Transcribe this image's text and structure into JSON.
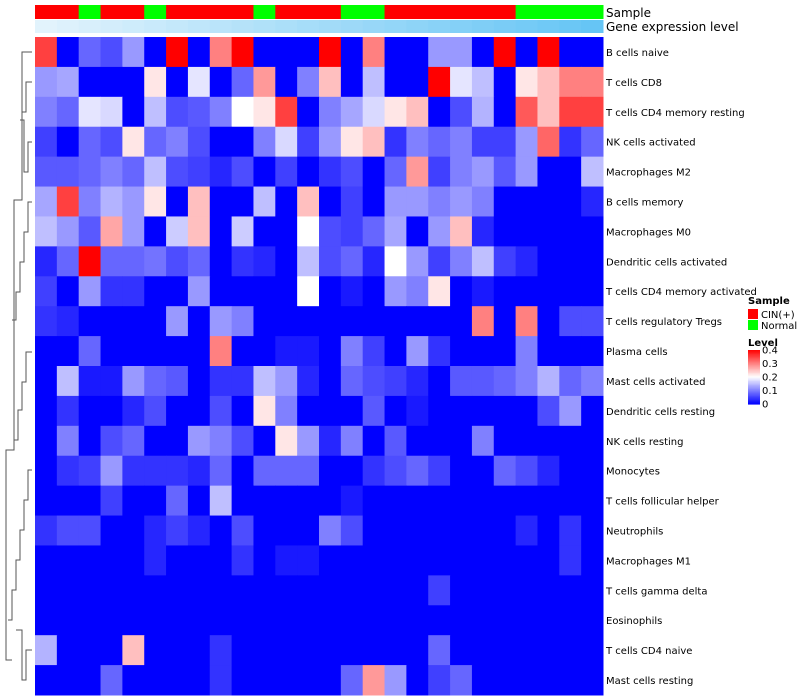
{
  "chart_data": {
    "type": "heatmap",
    "annotation_labels": {
      "sample": "Sample",
      "level": "Gene expression level"
    },
    "legend": {
      "sample_title": "Sample",
      "sample_entries": [
        {
          "label": "CIN(+)",
          "color": "#ff0000"
        },
        {
          "label": "Normal",
          "color": "#00ff00"
        }
      ],
      "level_title": "Level",
      "level_ticks": [
        "0.4",
        "0.3",
        "0.2",
        "0.1",
        "0"
      ],
      "level_tick_values": [
        0.4,
        0.3,
        0.2,
        0.1,
        0
      ]
    },
    "color_scale": {
      "low": "#0000ff",
      "mid": "#ffffff",
      "high": "#ff0000",
      "min": 0,
      "max": 0.4
    },
    "sample_groups": [
      "CIN(+)",
      "CIN(+)",
      "Normal",
      "CIN(+)",
      "CIN(+)",
      "Normal",
      "CIN(+)",
      "CIN(+)",
      "CIN(+)",
      "CIN(+)",
      "Normal",
      "CIN(+)",
      "CIN(+)",
      "CIN(+)",
      "Normal",
      "Normal",
      "CIN(+)",
      "CIN(+)",
      "CIN(+)",
      "CIN(+)",
      "CIN(+)",
      "CIN(+)",
      "Normal",
      "Normal",
      "Normal",
      "Normal"
    ],
    "expression_levels": [
      0.1,
      0.11,
      0.12,
      0.13,
      0.14,
      0.15,
      0.16,
      0.17,
      0.18,
      0.19,
      0.2,
      0.21,
      0.22,
      0.23,
      0.24,
      0.25,
      0.26,
      0.27,
      0.28,
      0.29,
      0.3,
      0.31,
      0.32,
      0.33,
      0.34,
      0.35
    ],
    "rows": [
      "B cells naive",
      "T cells CD8",
      "T cells CD4 memory resting",
      "NK cells activated",
      "Macrophages M2",
      "B cells memory",
      "Macrophages M0",
      "Dendritic cells activated",
      "T cells CD4 memory activated",
      "T cells regulatory  Tregs",
      "Plasma cells",
      "Mast cells activated",
      "Dendritic cells resting",
      "NK cells resting",
      "Monocytes",
      "T cells follicular helper",
      "Neutrophils",
      "Macrophages M1",
      "T cells gamma delta",
      "Eosinophils",
      "T cells CD4 naive",
      "Mast cells resting"
    ],
    "values": [
      [
        0.35,
        0.0,
        0.08,
        0.06,
        0.12,
        0.0,
        0.4,
        0.0,
        0.3,
        0.4,
        0.0,
        0.0,
        0.0,
        0.4,
        0.0,
        0.3,
        0.0,
        0.0,
        0.12,
        0.12,
        0.0,
        0.4,
        0.0,
        0.4,
        0.0,
        0.0
      ],
      [
        0.12,
        0.13,
        0.0,
        0.0,
        0.0,
        0.22,
        0.0,
        0.18,
        0.0,
        0.08,
        0.28,
        0.0,
        0.1,
        0.25,
        0.0,
        0.15,
        0.0,
        0.0,
        0.4,
        0.18,
        0.15,
        0.0,
        0.22,
        0.25,
        0.3,
        0.3
      ],
      [
        0.1,
        0.08,
        0.18,
        0.17,
        0.0,
        0.15,
        0.06,
        0.07,
        0.1,
        0.2,
        0.22,
        0.35,
        0.0,
        0.1,
        0.13,
        0.17,
        0.22,
        0.25,
        0.0,
        0.06,
        0.14,
        0.0,
        0.33,
        0.25,
        0.35,
        0.35
      ],
      [
        0.05,
        0.0,
        0.08,
        0.06,
        0.22,
        0.08,
        0.1,
        0.06,
        0.0,
        0.0,
        0.1,
        0.17,
        0.05,
        0.12,
        0.22,
        0.25,
        0.04,
        0.1,
        0.08,
        0.1,
        0.05,
        0.05,
        0.12,
        0.32,
        0.04,
        0.08
      ],
      [
        0.07,
        0.07,
        0.08,
        0.1,
        0.08,
        0.15,
        0.06,
        0.05,
        0.03,
        0.06,
        0.0,
        0.05,
        0.0,
        0.04,
        0.06,
        0.0,
        0.08,
        0.28,
        0.05,
        0.1,
        0.12,
        0.07,
        0.12,
        0.0,
        0.0,
        0.15
      ],
      [
        0.13,
        0.35,
        0.1,
        0.14,
        0.12,
        0.22,
        0.0,
        0.25,
        0.0,
        0.0,
        0.15,
        0.0,
        0.25,
        0.0,
        0.05,
        0.0,
        0.12,
        0.12,
        0.1,
        0.12,
        0.1,
        0.0,
        0.0,
        0.0,
        0.0,
        0.03
      ],
      [
        0.15,
        0.12,
        0.07,
        0.27,
        0.12,
        0.0,
        0.16,
        0.25,
        0.0,
        0.16,
        0.0,
        0.0,
        0.2,
        0.06,
        0.05,
        0.08,
        0.13,
        0.0,
        0.12,
        0.25,
        0.03,
        0.0,
        0.0,
        0.0,
        0.0,
        0.0
      ],
      [
        0.03,
        0.08,
        0.4,
        0.08,
        0.08,
        0.09,
        0.06,
        0.08,
        0.0,
        0.04,
        0.03,
        0.0,
        0.15,
        0.06,
        0.08,
        0.03,
        0.2,
        0.12,
        0.05,
        0.1,
        0.15,
        0.05,
        0.03,
        0.0,
        0.0,
        0.0
      ],
      [
        0.05,
        0.0,
        0.12,
        0.04,
        0.04,
        0.0,
        0.0,
        0.12,
        0.0,
        0.0,
        0.0,
        0.0,
        0.2,
        0.0,
        0.02,
        0.0,
        0.12,
        0.1,
        0.22,
        0.0,
        0.02,
        0.0,
        0.0,
        0.0,
        0.0,
        0.0
      ],
      [
        0.04,
        0.03,
        0.0,
        0.0,
        0.0,
        0.0,
        0.12,
        0.0,
        0.12,
        0.1,
        0.0,
        0.0,
        0.0,
        0.0,
        0.0,
        0.0,
        0.0,
        0.0,
        0.0,
        0.0,
        0.3,
        0.0,
        0.3,
        0.0,
        0.06,
        0.06
      ],
      [
        0.0,
        0.0,
        0.08,
        0.0,
        0.0,
        0.0,
        0.0,
        0.0,
        0.3,
        0.0,
        0.0,
        0.02,
        0.02,
        0.0,
        0.1,
        0.05,
        0.0,
        0.12,
        0.04,
        0.0,
        0.0,
        0.0,
        0.1,
        0.0,
        0.0,
        0.0
      ],
      [
        0.0,
        0.15,
        0.02,
        0.02,
        0.12,
        0.08,
        0.07,
        0.0,
        0.04,
        0.04,
        0.15,
        0.12,
        0.03,
        0.0,
        0.08,
        0.06,
        0.05,
        0.03,
        0.0,
        0.07,
        0.07,
        0.08,
        0.1,
        0.14,
        0.08,
        0.1
      ],
      [
        0.0,
        0.04,
        0.0,
        0.0,
        0.03,
        0.06,
        0.0,
        0.0,
        0.06,
        0.0,
        0.22,
        0.1,
        0.0,
        0.0,
        0.0,
        0.07,
        0.0,
        0.02,
        0.0,
        0.0,
        0.0,
        0.0,
        0.0,
        0.06,
        0.12,
        0.0
      ],
      [
        0.0,
        0.1,
        0.0,
        0.06,
        0.08,
        0.0,
        0.0,
        0.12,
        0.1,
        0.06,
        0.0,
        0.22,
        0.12,
        0.03,
        0.1,
        0.0,
        0.07,
        0.0,
        0.0,
        0.0,
        0.1,
        0.0,
        0.0,
        0.0,
        0.0,
        0.0
      ],
      [
        0.0,
        0.04,
        0.05,
        0.12,
        0.04,
        0.04,
        0.04,
        0.03,
        0.08,
        0.0,
        0.08,
        0.08,
        0.08,
        0.0,
        0.0,
        0.04,
        0.06,
        0.08,
        0.05,
        0.0,
        0.0,
        0.08,
        0.06,
        0.03,
        0.0,
        0.0
      ],
      [
        0.0,
        0.0,
        0.0,
        0.05,
        0.0,
        0.0,
        0.08,
        0.0,
        0.15,
        0.0,
        0.0,
        0.0,
        0.0,
        0.0,
        0.02,
        0.0,
        0.0,
        0.0,
        0.0,
        0.0,
        0.0,
        0.0,
        0.0,
        0.0,
        0.0,
        0.0
      ],
      [
        0.04,
        0.06,
        0.06,
        0.0,
        0.0,
        0.03,
        0.05,
        0.03,
        0.0,
        0.06,
        0.0,
        0.0,
        0.0,
        0.1,
        0.06,
        0.0,
        0.0,
        0.0,
        0.0,
        0.0,
        0.0,
        0.0,
        0.03,
        0.0,
        0.04,
        0.0
      ],
      [
        0.0,
        0.0,
        0.0,
        0.0,
        0.0,
        0.03,
        0.0,
        0.0,
        0.0,
        0.04,
        0.0,
        0.02,
        0.02,
        0.0,
        0.0,
        0.0,
        0.0,
        0.0,
        0.0,
        0.0,
        0.0,
        0.0,
        0.0,
        0.0,
        0.04,
        0.0
      ],
      [
        0.0,
        0.0,
        0.0,
        0.0,
        0.0,
        0.0,
        0.0,
        0.0,
        0.0,
        0.0,
        0.0,
        0.0,
        0.0,
        0.0,
        0.0,
        0.0,
        0.0,
        0.0,
        0.05,
        0.0,
        0.0,
        0.0,
        0.0,
        0.0,
        0.0,
        0.0
      ],
      [
        0.0,
        0.0,
        0.0,
        0.0,
        0.0,
        0.0,
        0.0,
        0.0,
        0.0,
        0.0,
        0.0,
        0.0,
        0.0,
        0.0,
        0.0,
        0.0,
        0.0,
        0.0,
        0.0,
        0.0,
        0.0,
        0.0,
        0.0,
        0.0,
        0.0,
        0.0
      ],
      [
        0.14,
        0.0,
        0.0,
        0.0,
        0.25,
        0.0,
        0.0,
        0.0,
        0.04,
        0.0,
        0.0,
        0.0,
        0.0,
        0.0,
        0.0,
        0.0,
        0.0,
        0.0,
        0.08,
        0.0,
        0.0,
        0.0,
        0.0,
        0.0,
        0.0,
        0.0
      ],
      [
        0.0,
        0.0,
        0.0,
        0.08,
        0.0,
        0.0,
        0.0,
        0.0,
        0.04,
        0.0,
        0.0,
        0.0,
        0.0,
        0.0,
        0.08,
        0.28,
        0.12,
        0.0,
        0.05,
        0.08,
        0.0,
        0.0,
        0.0,
        0.0,
        0.0,
        0.0
      ]
    ]
  }
}
